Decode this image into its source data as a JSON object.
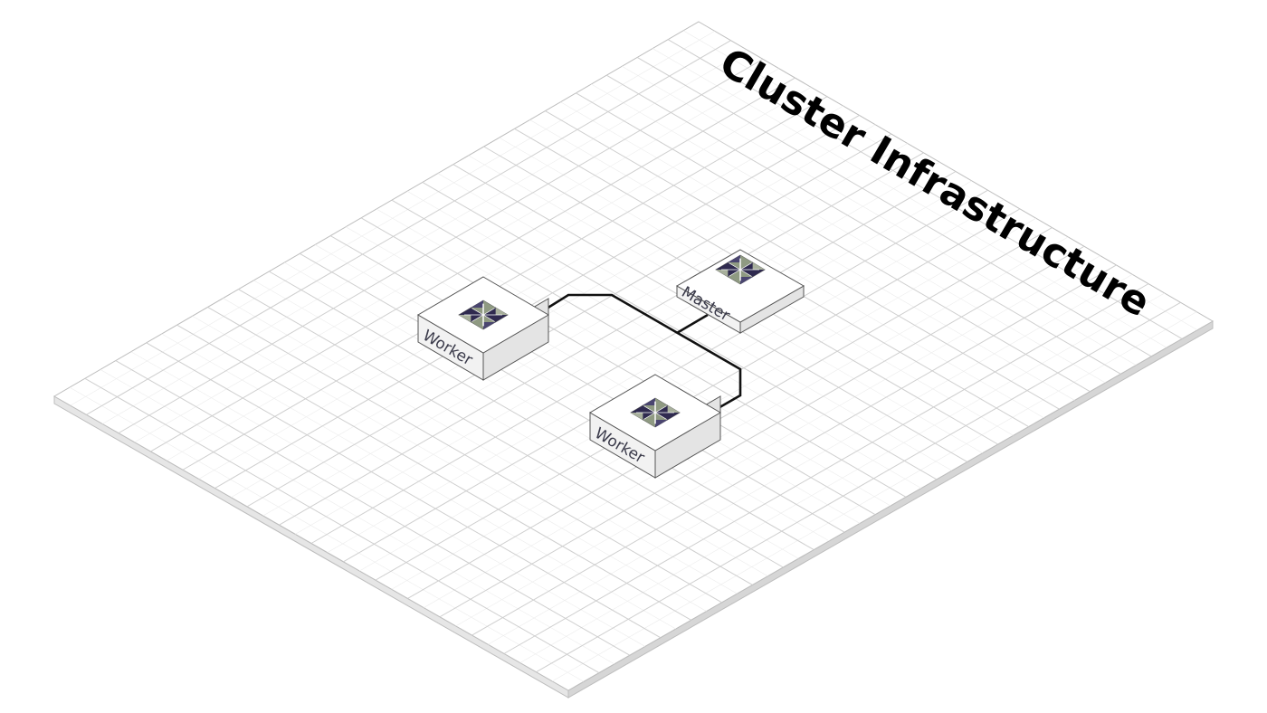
{
  "title": "Cluster Infrastructure",
  "nodes": [
    {
      "id": "master",
      "label": "Master",
      "logo": "centos-logo-icon"
    },
    {
      "id": "worker1",
      "label": "Worker",
      "logo": "centos-logo-icon"
    },
    {
      "id": "worker2",
      "label": "Worker",
      "logo": "centos-logo-icon"
    }
  ],
  "links": [
    {
      "from": "worker1",
      "to": "worker2"
    },
    {
      "from": "master",
      "to": "worker2"
    }
  ],
  "colors": {
    "platform_top": "#ffffff",
    "platform_edge": "#dcdcdc",
    "grid": "#cfcfcf",
    "node_top": "#ffffff",
    "node_left": "#f2f2f2",
    "node_right": "#e4e4e4",
    "logo_purple": "#2f2a4f",
    "logo_green": "#8f9a82",
    "link": "#111111"
  }
}
